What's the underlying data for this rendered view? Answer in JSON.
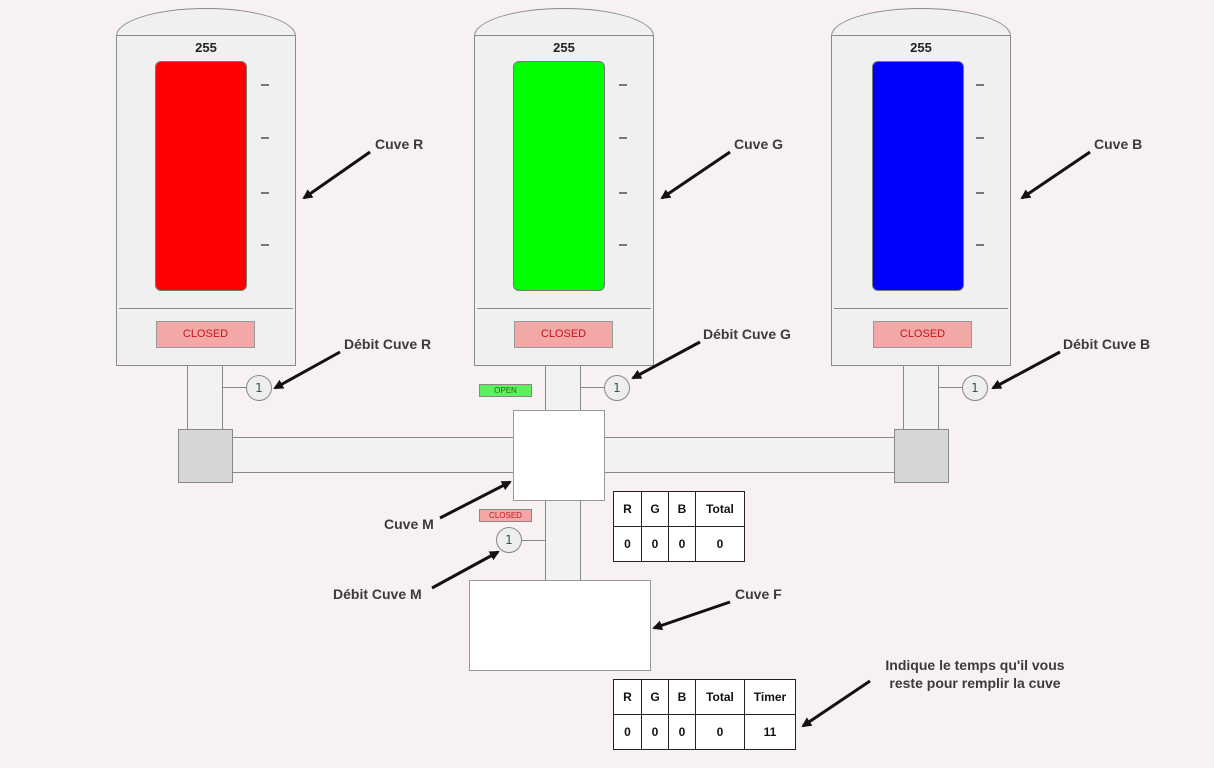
{
  "tanks": [
    {
      "name": "Cuve R",
      "level": "255",
      "color": "#ff0000",
      "valve": "CLOSED",
      "flow": "1",
      "flow_label": "Débit Cuve R"
    },
    {
      "name": "Cuve G",
      "level": "255",
      "color": "#00ff00",
      "valve": "CLOSED",
      "flow": "1",
      "flow_label": "Débit Cuve G"
    },
    {
      "name": "Cuve B",
      "level": "255",
      "color": "#0000ff",
      "valve": "CLOSED",
      "flow": "1",
      "flow_label": "Débit Cuve B"
    }
  ],
  "mixer": {
    "name": "Cuve M",
    "input_status": "OPEN",
    "output_status": "CLOSED",
    "flow": "1",
    "flow_label": "Débit Cuve M",
    "table": {
      "headers": [
        "R",
        "G",
        "B",
        "Total"
      ],
      "values": [
        "0",
        "0",
        "0",
        "0"
      ]
    }
  },
  "final": {
    "name": "Cuve F",
    "table": {
      "headers": [
        "R",
        "G",
        "B",
        "Total",
        "Timer"
      ],
      "values": [
        "0",
        "0",
        "0",
        "0",
        "11"
      ]
    },
    "timer_note_line1": "Indique le temps qu'il vous",
    "timer_note_line2": "reste pour remplir la cuve"
  },
  "colors": {
    "closed_bg": "#f4a7a7",
    "closed_text": "#c2161a",
    "open_bg": "#5ef05e",
    "open_text": "#1a6b1a"
  }
}
